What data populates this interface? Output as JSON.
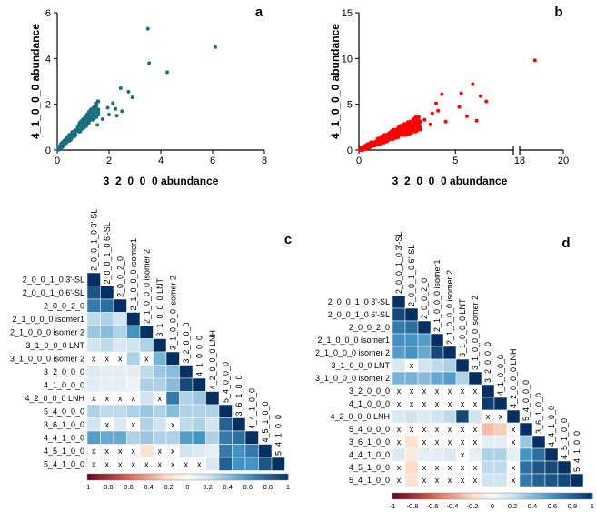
{
  "chart_data": [
    {
      "id": "a",
      "type": "scatter",
      "panel_label": "a",
      "xlabel": "3_2_0_0_0 abundance",
      "ylabel": "4_1_0_0_0 abundance",
      "xlim": [
        0,
        8
      ],
      "ylim": [
        0,
        6
      ],
      "xticks": [
        "0",
        "2",
        "4",
        "6",
        "8"
      ],
      "yticks": [
        "0",
        "2",
        "4",
        "6"
      ],
      "color": "#1d6f7e",
      "outliers": [
        [
          3.5,
          5.3
        ],
        [
          3.55,
          3.8
        ],
        [
          4.25,
          3.4
        ],
        [
          6.1,
          4.5
        ],
        [
          2.45,
          2.7
        ],
        [
          2.75,
          2.55
        ],
        [
          2.9,
          2.3
        ],
        [
          2.15,
          2.05
        ],
        [
          1.95,
          1.85
        ],
        [
          2.25,
          1.8
        ],
        [
          2.0,
          1.55
        ],
        [
          1.75,
          1.35
        ],
        [
          2.3,
          1.5
        ],
        [
          2.5,
          1.7
        ],
        [
          1.55,
          1.1
        ]
      ],
      "cloud": {
        "n": 190,
        "x_range": [
          0.05,
          1.6
        ],
        "slope": 1.15,
        "spread": 0.32
      }
    },
    {
      "id": "b",
      "type": "scatter",
      "panel_label": "b",
      "xlabel": "3_2_0_0_0 abundance",
      "ylabel": "4_1_0_0_0 abundance",
      "xlim": [
        0,
        20
      ],
      "axis_break": [
        8,
        18
      ],
      "ylim": [
        0,
        15
      ],
      "xticks": [
        "0",
        "5",
        "18",
        "20"
      ],
      "yticks": [
        "0",
        "5",
        "10",
        "15"
      ],
      "color": "#ff0000",
      "outliers": [
        [
          18.7,
          9.8
        ],
        [
          5.9,
          7.2
        ],
        [
          5.3,
          6.2
        ],
        [
          4.3,
          6.1
        ],
        [
          6.3,
          5.9
        ],
        [
          6.6,
          5.3
        ],
        [
          4.0,
          5.1
        ],
        [
          5.2,
          4.7
        ],
        [
          3.8,
          4.0
        ],
        [
          4.1,
          4.3
        ],
        [
          3.1,
          3.6
        ],
        [
          5.6,
          3.7
        ],
        [
          6.1,
          3.2
        ],
        [
          3.4,
          3.3
        ],
        [
          3.7,
          2.8
        ],
        [
          4.5,
          3.1
        ],
        [
          2.8,
          3.0
        ],
        [
          3.0,
          2.7
        ]
      ],
      "cloud": {
        "n": 320,
        "x_range": [
          0.05,
          3.2
        ],
        "slope": 0.95,
        "spread": 0.45
      }
    },
    {
      "id": "c",
      "type": "heatmap",
      "panel_label": "c",
      "labels": [
        "2_0_0_1_0 3'-SL",
        "2_0_0_1_0 6'-SL",
        "2_0_0_2_0",
        "2_1_0_0_0 isomer1",
        "2_1_0_0_0 isomer 2",
        "3_1_0_0_0 LNT",
        "3_1_0_0_0 isomer 2",
        "3_2_0_0_0",
        "4_1_0_0_0",
        "4_2_0_0_0 LNH",
        "5_4_0_0_0",
        "3_6_1_0_0",
        "4_4_1_0_0",
        "4_5_1_0_0",
        "5_4_1_0_0"
      ],
      "matrix": [
        [
          1
        ],
        [
          0.85,
          1
        ],
        [
          0.7,
          0.75,
          1
        ],
        [
          0.25,
          0.3,
          0.2,
          1
        ],
        [
          0.35,
          0.4,
          0.3,
          0.6,
          1
        ],
        [
          0.2,
          0.25,
          0.15,
          0.2,
          0.3,
          1
        ],
        [
          "x",
          "x",
          "x",
          0.3,
          "x",
          0.45,
          1
        ],
        [
          0.15,
          0.1,
          0.1,
          0.1,
          0.25,
          0.35,
          0.4,
          1
        ],
        [
          0.12,
          0.1,
          0.1,
          0.05,
          0.3,
          0.3,
          0.4,
          0.9,
          1
        ],
        [
          "x",
          "x",
          "x",
          "x",
          0.2,
          "x",
          0.7,
          0.3,
          0.35,
          1
        ],
        [
          0.3,
          0.25,
          0.25,
          0.3,
          0.35,
          0.3,
          0.4,
          0.3,
          0.3,
          0.3,
          1
        ],
        [
          0.2,
          "x",
          0.15,
          "x",
          0.3,
          0.2,
          "x",
          0.25,
          0.3,
          0.2,
          0.8,
          1
        ],
        [
          0.55,
          0.5,
          0.5,
          0.3,
          0.35,
          0.3,
          0.3,
          0.55,
          0.6,
          0.3,
          0.7,
          0.75,
          1
        ],
        [
          "x",
          "x",
          "x",
          "x",
          -0.15,
          "x",
          "x",
          0.2,
          0.15,
          0.1,
          0.7,
          0.6,
          0.7,
          1
        ],
        [
          "x",
          "x",
          "x",
          "x",
          "x",
          "x",
          "x",
          "x",
          "x",
          0.15,
          0.8,
          0.6,
          0.6,
          0.85,
          1
        ]
      ],
      "colorbar_ticks": [
        "-1",
        "-0.8",
        "-0.6",
        "-0.4",
        "-0.2",
        "0",
        "0.2",
        "0.4",
        "0.6",
        "0.8",
        "1"
      ]
    },
    {
      "id": "d",
      "type": "heatmap",
      "panel_label": "d",
      "labels": [
        "2_0_0_1_0 3'-SL",
        "2_0_0_1_0 6'-SL",
        "2_0_0_2_0",
        "2_1_0_0_0 isomer1",
        "2_1_0_0_0 isomer 2",
        "3_1_0_0_0 LNT",
        "3_1_0_0_0 isomer 2",
        "3_2_0_0_0",
        "4_1_0_0_0",
        "4_2_0_0_0 LNH",
        "5_4_0_0_0",
        "3_6_1_0_0",
        "4_4_1_0_0",
        "4_5_1_0_0",
        "5_4_1_0_0"
      ],
      "matrix": [
        [
          1
        ],
        [
          0.9,
          1
        ],
        [
          0.7,
          0.75,
          1
        ],
        [
          0.6,
          0.6,
          0.55,
          1
        ],
        [
          0.55,
          0.6,
          0.5,
          0.9,
          1
        ],
        [
          0.15,
          "x",
          0.2,
          0.25,
          0.3,
          1
        ],
        [
          0.45,
          0.45,
          0.4,
          0.5,
          0.55,
          0.3,
          1
        ],
        [
          "x",
          "x",
          "x",
          "x",
          "x",
          "x",
          "x",
          1
        ],
        [
          "x",
          "x",
          "x",
          "x",
          "x",
          "x",
          "x",
          0.95,
          1
        ],
        [
          0.15,
          0.2,
          0.15,
          0.2,
          0.25,
          0.9,
          0.2,
          "x",
          "x",
          1
        ],
        [
          "x",
          "x",
          "x",
          "x",
          "x",
          "x",
          "x",
          -0.3,
          -0.25,
          "x",
          1
        ],
        [
          "x",
          -0.15,
          "x",
          "x",
          "x",
          "x",
          "x",
          0.1,
          0.1,
          "x",
          0.35,
          1
        ],
        [
          0.15,
          -0.1,
          0.1,
          0.1,
          0.15,
          "x",
          0.1,
          0.3,
          0.3,
          0.1,
          0.6,
          0.75,
          1
        ],
        [
          "x",
          -0.2,
          "x",
          "x",
          "x",
          "x",
          "x",
          0.25,
          0.25,
          "x",
          0.75,
          0.85,
          0.9,
          1
        ],
        [
          "x",
          -0.15,
          "x",
          "x",
          "x",
          "x",
          "x",
          0.2,
          0.2,
          "x",
          0.7,
          0.8,
          0.85,
          0.9,
          1
        ]
      ],
      "colorbar_ticks": [
        "-1",
        "-0.8",
        "-0.6",
        "-0.4",
        "-0.2",
        "0",
        "0.2",
        "0.4",
        "0.6",
        "0.8",
        "1"
      ]
    }
  ]
}
